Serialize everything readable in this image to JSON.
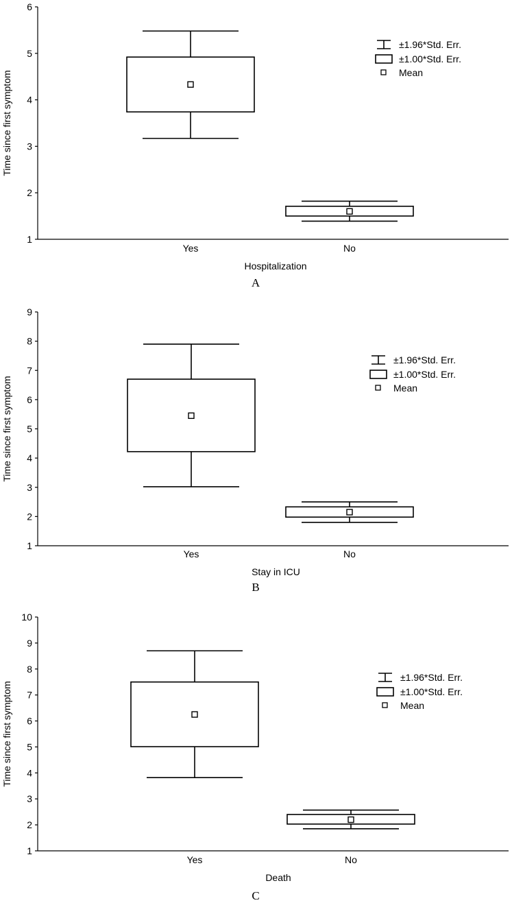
{
  "legend": {
    "whisker_label": "±1.96*Std. Err.",
    "box_label": "±1.00*Std. Err.",
    "mean_label": "Mean",
    "position": "top-right"
  },
  "chart_data": [
    {
      "type": "box",
      "panel_label": "A",
      "xlabel": "Hospitalization",
      "ylabel": "Time since first symptom",
      "ylim": [
        1,
        6
      ],
      "yticks": [
        1,
        2,
        3,
        4,
        5,
        6
      ],
      "categories": [
        "Yes",
        "No"
      ],
      "boxes": [
        {
          "category": "Yes",
          "mean": 4.33,
          "se_low": 3.74,
          "se_high": 4.92,
          "ci_low": 3.17,
          "ci_high": 5.48
        },
        {
          "category": "No",
          "mean": 1.6,
          "se_low": 1.5,
          "se_high": 1.71,
          "ci_low": 1.39,
          "ci_high": 1.82
        }
      ]
    },
    {
      "type": "box",
      "panel_label": "B",
      "xlabel": "Stay in ICU",
      "ylabel": "Time since first symptom",
      "ylim": [
        1,
        9
      ],
      "yticks": [
        1,
        2,
        3,
        4,
        5,
        6,
        7,
        8,
        9
      ],
      "categories": [
        "Yes",
        "No"
      ],
      "boxes": [
        {
          "category": "Yes",
          "mean": 5.45,
          "se_low": 4.22,
          "se_high": 6.7,
          "ci_low": 3.02,
          "ci_high": 7.9
        },
        {
          "category": "No",
          "mean": 2.15,
          "se_low": 1.98,
          "se_high": 2.33,
          "ci_low": 1.8,
          "ci_high": 2.5
        }
      ]
    },
    {
      "type": "box",
      "panel_label": "C",
      "xlabel": "Death",
      "ylabel": "Time since first symptom",
      "ylim": [
        1,
        10
      ],
      "yticks": [
        1,
        2,
        3,
        4,
        5,
        6,
        7,
        8,
        9,
        10
      ],
      "categories": [
        "Yes",
        "No"
      ],
      "boxes": [
        {
          "category": "Yes",
          "mean": 6.25,
          "se_low": 5.01,
          "se_high": 7.5,
          "ci_low": 3.82,
          "ci_high": 8.7
        },
        {
          "category": "No",
          "mean": 2.2,
          "se_low": 2.03,
          "se_high": 2.4,
          "ci_low": 1.85,
          "ci_high": 2.57
        }
      ]
    }
  ]
}
